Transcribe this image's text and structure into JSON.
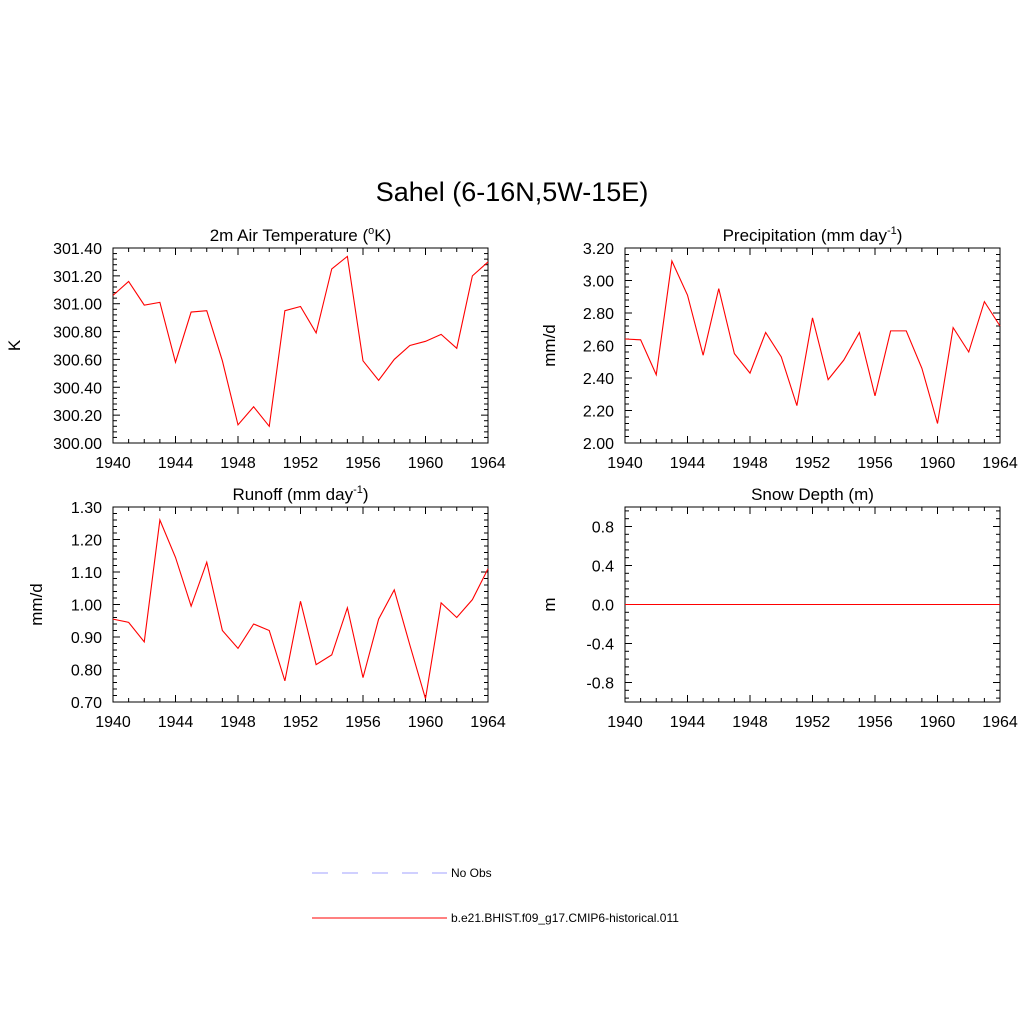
{
  "figure": {
    "title": "Sahel (6-16N,5W-15E)"
  },
  "chart_data": [
    {
      "type": "line",
      "title": "2m Air Temperature (",
      "title_sup": "o",
      "title_tail": "K)",
      "ylabel": "K",
      "xlabel": "",
      "xlim": [
        1940,
        1964
      ],
      "ylim": [
        300.0,
        301.4
      ],
      "xticks": [
        "1940",
        "1944",
        "1948",
        "1952",
        "1956",
        "1960",
        "1964"
      ],
      "yticks": [
        "300.00",
        "300.20",
        "300.40",
        "300.60",
        "300.80",
        "301.00",
        "301.20",
        "301.40"
      ],
      "x": [
        1940,
        1941,
        1942,
        1943,
        1944,
        1945,
        1946,
        1947,
        1948,
        1949,
        1950,
        1951,
        1952,
        1953,
        1954,
        1955,
        1956,
        1957,
        1958,
        1959,
        1960,
        1961,
        1962,
        1963,
        1964
      ],
      "series": [
        {
          "name": "b.e21.BHIST.f09_g17.CMIP6-historical.011",
          "color": "#ff0000",
          "values": [
            301.06,
            301.16,
            300.99,
            301.01,
            300.58,
            300.94,
            300.95,
            300.59,
            300.13,
            300.26,
            300.12,
            300.95,
            300.98,
            300.79,
            301.25,
            301.34,
            300.59,
            300.45,
            300.6,
            300.7,
            300.73,
            300.78,
            300.68,
            301.2,
            301.3
          ]
        }
      ]
    },
    {
      "type": "line",
      "title": "Precipitation (mm day",
      "title_sup": "-1",
      "title_tail": ")",
      "ylabel": "mm/d",
      "xlabel": "",
      "xlim": [
        1940,
        1964
      ],
      "ylim": [
        2.0,
        3.2
      ],
      "xticks": [
        "1940",
        "1944",
        "1948",
        "1952",
        "1956",
        "1960",
        "1964"
      ],
      "yticks": [
        "2.00",
        "2.20",
        "2.40",
        "2.60",
        "2.80",
        "3.00",
        "3.20"
      ],
      "x": [
        1940,
        1941,
        1942,
        1943,
        1944,
        1945,
        1946,
        1947,
        1948,
        1949,
        1950,
        1951,
        1952,
        1953,
        1954,
        1955,
        1956,
        1957,
        1958,
        1959,
        1960,
        1961,
        1962,
        1963,
        1964
      ],
      "series": [
        {
          "name": "b.e21.BHIST.f09_g17.CMIP6-historical.011",
          "color": "#ff0000",
          "values": [
            2.64,
            2.635,
            2.42,
            3.12,
            2.91,
            2.54,
            2.95,
            2.55,
            2.43,
            2.68,
            2.53,
            2.23,
            2.77,
            2.39,
            2.51,
            2.68,
            2.29,
            2.69,
            2.69,
            2.46,
            2.12,
            2.71,
            2.56,
            2.87,
            2.72
          ]
        }
      ]
    },
    {
      "type": "line",
      "title": "Runoff (mm day",
      "title_sup": "-1",
      "title_tail": ")",
      "ylabel": "mm/d",
      "xlabel": "",
      "xlim": [
        1940,
        1964
      ],
      "ylim": [
        0.7,
        1.3
      ],
      "xticks": [
        "1940",
        "1944",
        "1948",
        "1952",
        "1956",
        "1960",
        "1964"
      ],
      "yticks": [
        "0.70",
        "0.80",
        "0.90",
        "1.00",
        "1.10",
        "1.20",
        "1.30"
      ],
      "x": [
        1940,
        1941,
        1942,
        1943,
        1944,
        1945,
        1946,
        1947,
        1948,
        1949,
        1950,
        1951,
        1952,
        1953,
        1954,
        1955,
        1956,
        1957,
        1958,
        1959,
        1960,
        1961,
        1962,
        1963,
        1964
      ],
      "series": [
        {
          "name": "b.e21.BHIST.f09_g17.CMIP6-historical.011",
          "color": "#ff0000",
          "values": [
            0.955,
            0.945,
            0.885,
            1.26,
            1.145,
            0.995,
            1.13,
            0.92,
            0.865,
            0.94,
            0.92,
            0.765,
            1.01,
            0.815,
            0.845,
            0.99,
            0.775,
            0.955,
            1.045,
            0.875,
            0.71,
            1.005,
            0.96,
            1.015,
            1.11
          ]
        }
      ]
    },
    {
      "type": "line",
      "title": "Snow Depth (m)",
      "title_sup": "",
      "title_tail": "",
      "ylabel": "m",
      "xlabel": "",
      "xlim": [
        1940,
        1964
      ],
      "ylim": [
        -1.0,
        1.0
      ],
      "xticks": [
        "1940",
        "1944",
        "1948",
        "1952",
        "1956",
        "1960",
        "1964"
      ],
      "yticks": [
        "-0.8",
        "-0.4",
        "0.0",
        "0.4",
        "0.8"
      ],
      "x": [
        1940,
        1941,
        1942,
        1943,
        1944,
        1945,
        1946,
        1947,
        1948,
        1949,
        1950,
        1951,
        1952,
        1953,
        1954,
        1955,
        1956,
        1957,
        1958,
        1959,
        1960,
        1961,
        1962,
        1963,
        1964
      ],
      "series": [
        {
          "name": "b.e21.BHIST.f09_g17.CMIP6-historical.011",
          "color": "#ff0000",
          "values": [
            0,
            0,
            0,
            0,
            0,
            0,
            0,
            0,
            0,
            0,
            0,
            0,
            0,
            0,
            0,
            0,
            0,
            0,
            0,
            0,
            0,
            0,
            0,
            0,
            0
          ]
        }
      ]
    }
  ],
  "legend": {
    "placement": "bottom-center",
    "entries": [
      {
        "label": "No Obs",
        "color": "#a0a0ff",
        "style": "dashed"
      },
      {
        "label": "b.e21.BHIST.f09_g17.CMIP6-historical.011",
        "color": "#ff0000",
        "style": "solid"
      }
    ]
  }
}
